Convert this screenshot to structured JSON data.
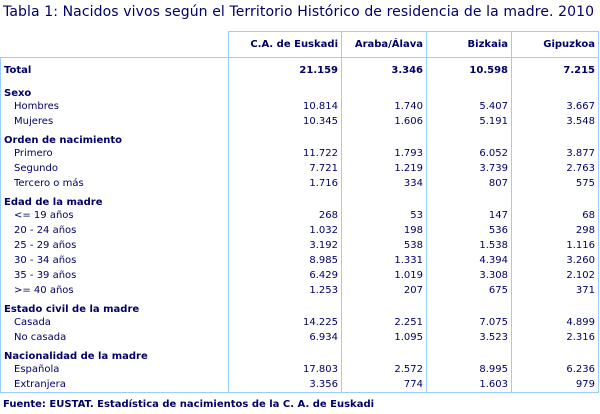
{
  "title": "Tabla 1: Nacidos vivos según el Territorio Histórico de residencia de la madre. 2010",
  "columns": [
    "",
    "C.A. de Euskadi",
    "Araba/Álava",
    "Bizkaia",
    "Gipuzkoa"
  ],
  "total": {
    "label": "Total",
    "values": [
      "21.159",
      "3.346",
      "10.598",
      "7.215"
    ]
  },
  "groups": [
    {
      "label": "Sexo",
      "rows": [
        {
          "label": "Hombres",
          "values": [
            "10.814",
            "1.740",
            "5.407",
            "3.667"
          ]
        },
        {
          "label": "Mujeres",
          "values": [
            "10.345",
            "1.606",
            "5.191",
            "3.548"
          ]
        }
      ]
    },
    {
      "label": "Orden de nacimiento",
      "rows": [
        {
          "label": "Primero",
          "values": [
            "11.722",
            "1.793",
            "6.052",
            "3.877"
          ]
        },
        {
          "label": "Segundo",
          "values": [
            "7.721",
            "1.219",
            "3.739",
            "2.763"
          ]
        },
        {
          "label": "Tercero o más",
          "values": [
            "1.716",
            "334",
            "807",
            "575"
          ]
        }
      ]
    },
    {
      "label": "Edad de la madre",
      "rows": [
        {
          "label": "<= 19 años",
          "values": [
            "268",
            "53",
            "147",
            "68"
          ]
        },
        {
          "label": "20 - 24 años",
          "values": [
            "1.032",
            "198",
            "536",
            "298"
          ]
        },
        {
          "label": "25 - 29 años",
          "values": [
            "3.192",
            "538",
            "1.538",
            "1.116"
          ]
        },
        {
          "label": "30 - 34 años",
          "values": [
            "8.985",
            "1.331",
            "4.394",
            "3.260"
          ]
        },
        {
          "label": "35 - 39 años",
          "values": [
            "6.429",
            "1.019",
            "3.308",
            "2.102"
          ]
        },
        {
          "label": ">= 40 años",
          "values": [
            "1.253",
            "207",
            "675",
            "371"
          ]
        }
      ]
    },
    {
      "label": "Estado civil de la madre",
      "rows": [
        {
          "label": "Casada",
          "values": [
            "14.225",
            "2.251",
            "7.075",
            "4.899"
          ]
        },
        {
          "label": "No casada",
          "values": [
            "6.934",
            "1.095",
            "3.523",
            "2.316"
          ]
        }
      ]
    },
    {
      "label": "Nacionalidad de la madre",
      "rows": [
        {
          "label": "Española",
          "values": [
            "17.803",
            "2.572",
            "8.995",
            "6.236"
          ]
        },
        {
          "label": "Extranjera",
          "values": [
            "3.356",
            "774",
            "1.603",
            "979"
          ]
        }
      ]
    }
  ],
  "source": "Fuente: EUSTAT. Estadística de nacimientos de la C. A. de Euskadi",
  "colors": {
    "text": "#000066",
    "border": "#99ccff",
    "background": "#ffffff"
  }
}
